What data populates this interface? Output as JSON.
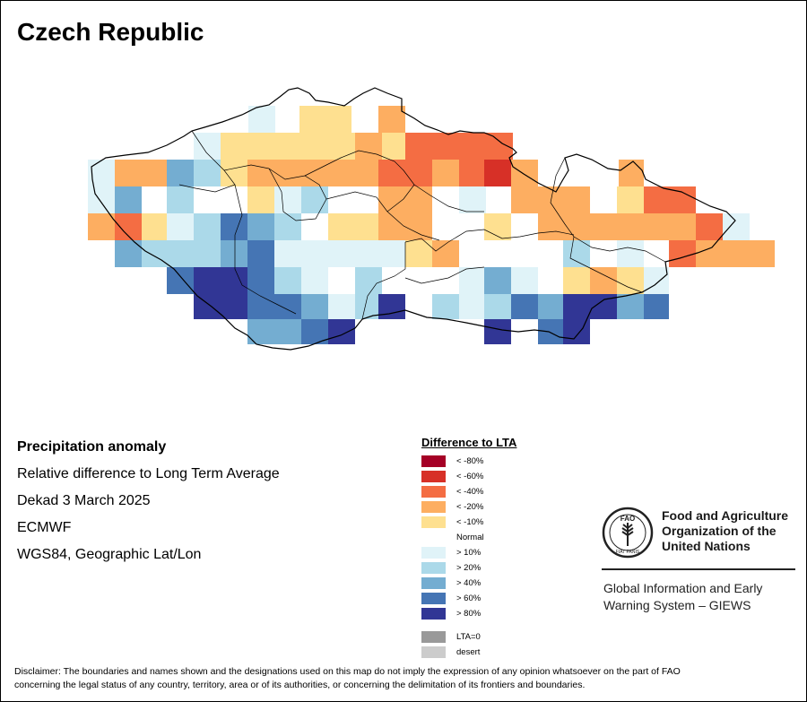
{
  "title": "Czech Republic",
  "info": {
    "heading": "Precipitation anomaly",
    "line1": "Relative difference to Long Term Average",
    "line2": "Dekad 3 March 2025",
    "line3": "ECMWF",
    "line4": "WGS84, Geographic Lat/Lon"
  },
  "legend": {
    "title": "Difference to LTA",
    "items": [
      {
        "label": "< -80%",
        "color": "#a50026"
      },
      {
        "label": "< -60%",
        "color": "#d73027"
      },
      {
        "label": "< -40%",
        "color": "#f46d43"
      },
      {
        "label": "< -20%",
        "color": "#fdae61"
      },
      {
        "label": "< -10%",
        "color": "#fee090"
      },
      {
        "label": "Normal",
        "color": "#ffffff"
      },
      {
        "label": "> 10%",
        "color": "#e0f3f8"
      },
      {
        "label": "> 20%",
        "color": "#abd9e9"
      },
      {
        "label": "> 40%",
        "color": "#74add1"
      },
      {
        "label": "> 60%",
        "color": "#4575b4"
      },
      {
        "label": "> 80%",
        "color": "#313695"
      }
    ],
    "extra": [
      {
        "label": "LTA=0",
        "color": "#999999"
      },
      {
        "label": "desert",
        "color": "#cccccc"
      }
    ]
  },
  "organization": {
    "name_line1": "Food and Agriculture",
    "name_line2": "Organization of the",
    "name_line3": "United Nations",
    "logo_text": "FAO",
    "logo_motto": "FIAT PANIS",
    "system_line1": "Global Information and Early",
    "system_line2": "Warning System – GIEWS"
  },
  "disclaimer_line1": "Disclaimer: The boundaries and names shown and the designations used on this map do not imply the expression of any opinion whatsoever on the part of FAO",
  "disclaimer_line2": "concerning the legal status of any country, territory, area or of its authorities, or concerning the delimitation of its frontiers and boundaries.",
  "grid_rows": [
    "......778........",
    "...78844888......",
    "....4442433......",
    "....44422122.....",
    "....43332233.....",
    "..6444334222.....",
    ".664433322.......",
    "..333.333.6......",
    "..733.33333..4...",
    "..7766.23.......",
    "..88.8..55.9..2..",
    ".99..88.8.9......"
  ],
  "map_cells": [
    {
      "c": "#e0f3f8",
      "v": ">10%"
    }
  ]
}
